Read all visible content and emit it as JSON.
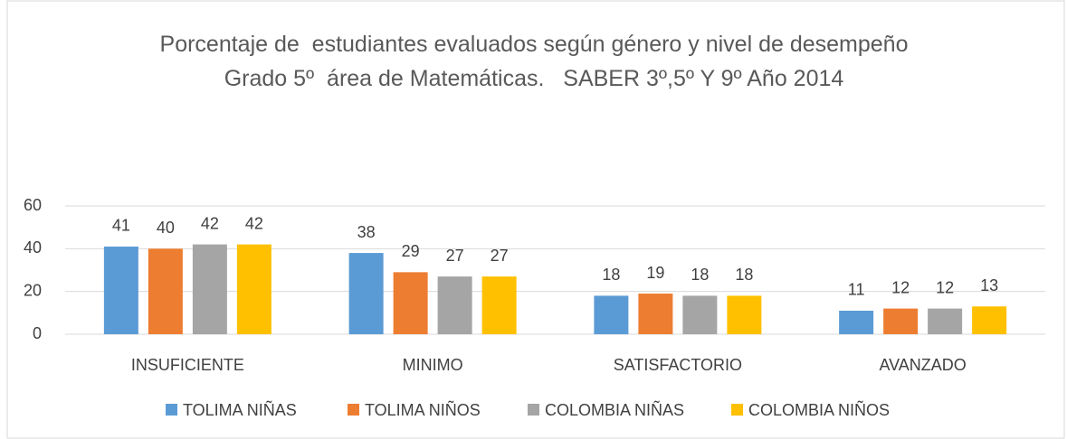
{
  "chart_data": {
    "type": "bar",
    "title": "Porcentaje de  estudiantes evaluados según género y nivel de desempeño Grado 5º  área de Matemáticas.   SABER 3º,5º Y 9º Año 2014",
    "categories": [
      "INSUFICIENTE",
      "MINIMO",
      "SATISFACTORIO",
      "AVANZADO"
    ],
    "series": [
      {
        "name": "TOLIMA NIÑAS",
        "color": "#5b9bd5",
        "values": [
          41,
          38,
          18,
          11
        ]
      },
      {
        "name": "TOLIMA NIÑOS",
        "color": "#ed7d31",
        "values": [
          40,
          29,
          19,
          12
        ]
      },
      {
        "name": "COLOMBIA NIÑAS",
        "color": "#a5a5a5",
        "values": [
          42,
          27,
          18,
          12
        ]
      },
      {
        "name": "COLOMBIA NIÑOS",
        "color": "#ffc000",
        "values": [
          42,
          27,
          18,
          13
        ]
      }
    ],
    "ylim": [
      0,
      60
    ],
    "yticks": [
      0,
      20,
      40,
      60
    ],
    "grid": true,
    "legend": "bottom"
  }
}
